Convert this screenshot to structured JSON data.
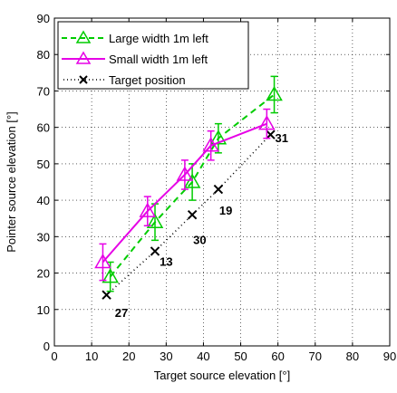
{
  "chart_data": {
    "type": "line",
    "title": "",
    "xlabel": "Target source elevation [°]",
    "ylabel": "Pointer source elevation [°]",
    "xlim": [
      0,
      90
    ],
    "ylim": [
      0,
      90
    ],
    "xticks": [
      0,
      10,
      20,
      30,
      40,
      50,
      60,
      70,
      80,
      90
    ],
    "yticks": [
      0,
      10,
      20,
      30,
      40,
      50,
      60,
      70,
      80,
      90
    ],
    "grid": "dotted",
    "legend_position": "top-left",
    "series": [
      {
        "name": "Large width 1m left",
        "color": "#00cc00",
        "linestyle": "dashed",
        "marker": "triangle",
        "x": [
          15,
          27,
          37,
          44,
          59
        ],
        "y": [
          19,
          34,
          45,
          57,
          69
        ],
        "err": [
          4,
          5,
          5,
          4,
          5
        ]
      },
      {
        "name": "Small width 1m left",
        "color": "#e600e6",
        "linestyle": "solid",
        "marker": "triangle",
        "x": [
          13,
          25,
          35,
          42,
          57
        ],
        "y": [
          23,
          37,
          47,
          55,
          61
        ],
        "err": [
          5,
          4,
          4,
          4,
          4
        ]
      },
      {
        "name": "Target position",
        "color": "#000000",
        "linestyle": "dotted",
        "marker": "x",
        "x": [
          14,
          27,
          37,
          44,
          58
        ],
        "y": [
          14,
          26,
          36,
          43,
          58
        ],
        "err": null
      }
    ],
    "annotations": [
      {
        "text": "27",
        "x": 18,
        "y": 8
      },
      {
        "text": "13",
        "x": 30,
        "y": 22
      },
      {
        "text": "30",
        "x": 39,
        "y": 28
      },
      {
        "text": "19",
        "x": 46,
        "y": 36
      },
      {
        "text": "31",
        "x": 61,
        "y": 56
      }
    ]
  }
}
